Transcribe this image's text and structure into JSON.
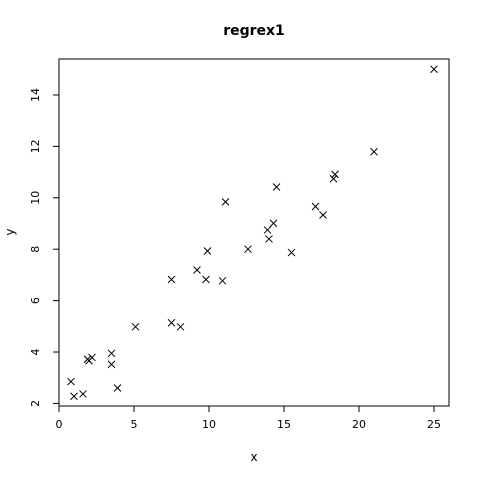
{
  "chart_data": {
    "type": "scatter",
    "title": "regrex1",
    "xlabel": "x",
    "ylabel": "y",
    "xlim": [
      0,
      26
    ],
    "ylim": [
      1.9,
      15.4
    ],
    "x_ticks": [
      0,
      5,
      10,
      15,
      20,
      25
    ],
    "y_ticks": [
      2,
      4,
      6,
      8,
      10,
      12,
      14
    ],
    "grid": false,
    "marker": "x",
    "points": [
      {
        "x": 0.8,
        "y": 2.85
      },
      {
        "x": 1.0,
        "y": 2.28
      },
      {
        "x": 1.6,
        "y": 2.37
      },
      {
        "x": 1.9,
        "y": 3.72
      },
      {
        "x": 2.0,
        "y": 3.66
      },
      {
        "x": 2.2,
        "y": 3.79
      },
      {
        "x": 3.5,
        "y": 3.95
      },
      {
        "x": 3.5,
        "y": 3.52
      },
      {
        "x": 3.9,
        "y": 2.6
      },
      {
        "x": 5.1,
        "y": 4.98
      },
      {
        "x": 7.5,
        "y": 6.82
      },
      {
        "x": 7.5,
        "y": 5.14
      },
      {
        "x": 8.1,
        "y": 4.98
      },
      {
        "x": 9.2,
        "y": 7.19
      },
      {
        "x": 9.8,
        "y": 6.82
      },
      {
        "x": 9.9,
        "y": 7.93
      },
      {
        "x": 10.9,
        "y": 6.77
      },
      {
        "x": 11.1,
        "y": 9.84
      },
      {
        "x": 12.6,
        "y": 8.0
      },
      {
        "x": 13.9,
        "y": 8.75
      },
      {
        "x": 14.0,
        "y": 8.4
      },
      {
        "x": 14.3,
        "y": 9.01
      },
      {
        "x": 14.5,
        "y": 10.42
      },
      {
        "x": 15.5,
        "y": 7.87
      },
      {
        "x": 17.1,
        "y": 9.66
      },
      {
        "x": 17.6,
        "y": 9.33
      },
      {
        "x": 18.3,
        "y": 10.74
      },
      {
        "x": 18.4,
        "y": 10.91
      },
      {
        "x": 21.0,
        "y": 11.79
      },
      {
        "x": 25.0,
        "y": 15.0
      }
    ]
  }
}
